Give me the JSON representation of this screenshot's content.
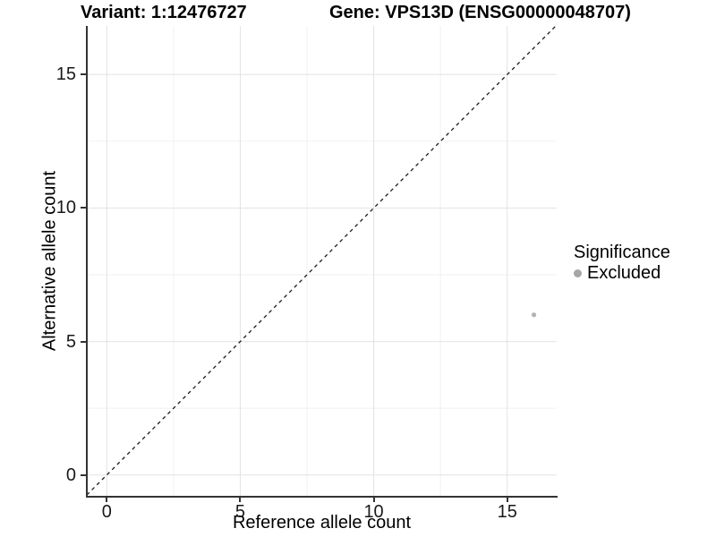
{
  "colors": {
    "background": "#ffffff",
    "axis_line": "#333333",
    "tick_mark": "#333333",
    "tick_text": "#1a1a1a",
    "grid_major": "#e3e3e3",
    "grid_minor": "#f1f1f1",
    "point": "#b4b4b4",
    "legend_key": "#a6a6a6",
    "diagonal_line": "#1a1a1a"
  },
  "chart_data": {
    "type": "scatter",
    "title_left": "Variant: 1:12476727",
    "title_right": "Gene: VPS13D (ENSG00000048707)",
    "xlabel": "Reference allele count",
    "ylabel": "Alternative allele count",
    "xlim": [
      -0.75,
      16.85
    ],
    "ylim": [
      -0.75,
      16.85
    ],
    "x_ticks": [
      0,
      5,
      10,
      15
    ],
    "y_ticks": [
      0,
      5,
      10,
      15
    ],
    "x_minor_gridlines": [
      2.5,
      7.5,
      12.5
    ],
    "y_minor_gridlines": [
      2.5,
      7.5,
      12.5
    ],
    "grid": "major and minor light-gray gridlines on white panel",
    "points": [
      {
        "x": 16,
        "y": 6,
        "significance": "Excluded",
        "color": "#b4b4b4"
      }
    ],
    "diagonal_line": {
      "equation": "y = x",
      "style": "dashed",
      "color": "#1a1a1a"
    },
    "legend": {
      "title": "Significance",
      "position": "right",
      "items": [
        {
          "label": "Excluded",
          "marker": "circle",
          "color": "#a6a6a6"
        }
      ]
    }
  }
}
